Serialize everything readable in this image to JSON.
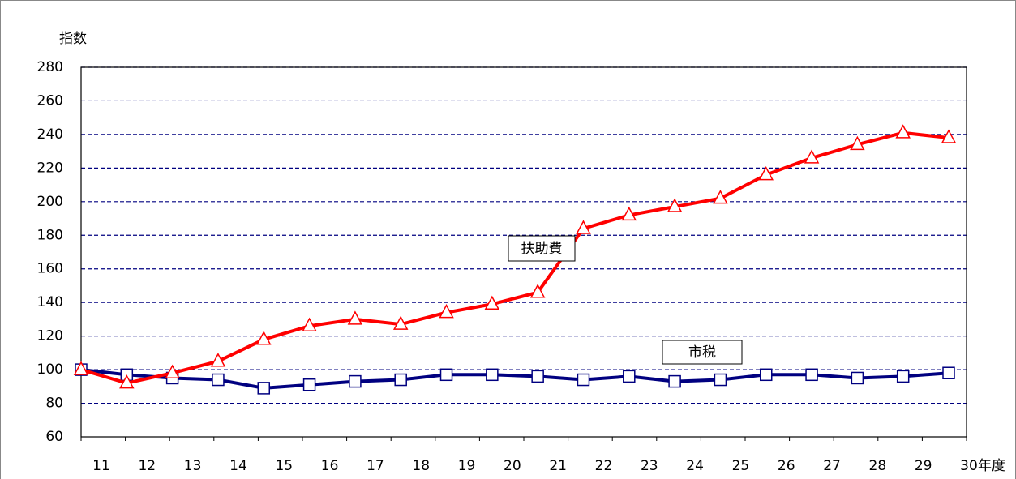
{
  "chart_data": {
    "type": "line",
    "y_label": "指数",
    "x_label": "年度",
    "categories": [
      "11",
      "12",
      "13",
      "14",
      "15",
      "16",
      "17",
      "18",
      "19",
      "20",
      "21",
      "22",
      "23",
      "24",
      "25",
      "26",
      "27",
      "28",
      "29",
      "30"
    ],
    "series": [
      {
        "name": "扶助費",
        "color": "#ff0000",
        "marker": "triangle",
        "values": [
          100,
          92,
          98,
          105,
          118,
          126,
          130,
          127,
          134,
          139,
          146,
          184,
          192,
          197,
          202,
          216,
          226,
          234,
          241,
          238
        ]
      },
      {
        "name": "市税",
        "color": "#000080",
        "marker": "square",
        "values": [
          100,
          97,
          95,
          94,
          89,
          91,
          93,
          94,
          97,
          97,
          96,
          94,
          96,
          93,
          94,
          97,
          97,
          95,
          96,
          98
        ]
      }
    ],
    "ylim": [
      60,
      280
    ],
    "yticks": [
      60,
      80,
      100,
      120,
      140,
      160,
      180,
      200,
      220,
      240,
      260,
      280
    ],
    "grid": true
  }
}
